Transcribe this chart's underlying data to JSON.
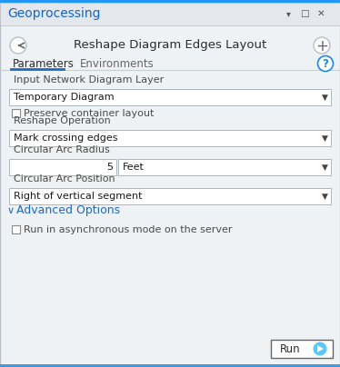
{
  "title": "Geoprocessing",
  "header": "Reshape Diagram Edges Layout",
  "tab1": "Parameters",
  "tab2": "Environments",
  "label1": "Input Network Diagram Layer",
  "dropdown1": "Temporary Diagram",
  "checkbox1_text": "Preserve container layout",
  "label2": "Reshape Operation",
  "dropdown2": "Mark crossing edges",
  "label3": "Circular Arc Radius",
  "value_field": "5",
  "unit_dropdown": "Feet",
  "label4": "Circular Arc Position",
  "dropdown4": "Right of vertical segment",
  "section": "Advanced Options",
  "checkbox2_text": "Run in asynchronous mode on the server",
  "run_button": "Run",
  "bg_color": "#eef2f5",
  "title_bar_color": "#e4e8ec",
  "title_bar_top": "#2196f3",
  "title_text_color": "#1565c0",
  "header_color": "#2d2d2d",
  "border_color": "#b8bec5",
  "dropdown_bg": "#ffffff",
  "dropdown_border": "#adb5bd",
  "tab_underline_color": "#1e6bbf",
  "label_color": "#4a4a4a",
  "section_color": "#1e6bbf",
  "help_circle_color": "#1e88e5",
  "run_button_play_color": "#5bc8f5",
  "bottom_border": "#4499dd",
  "ctrl_color": "#555555"
}
